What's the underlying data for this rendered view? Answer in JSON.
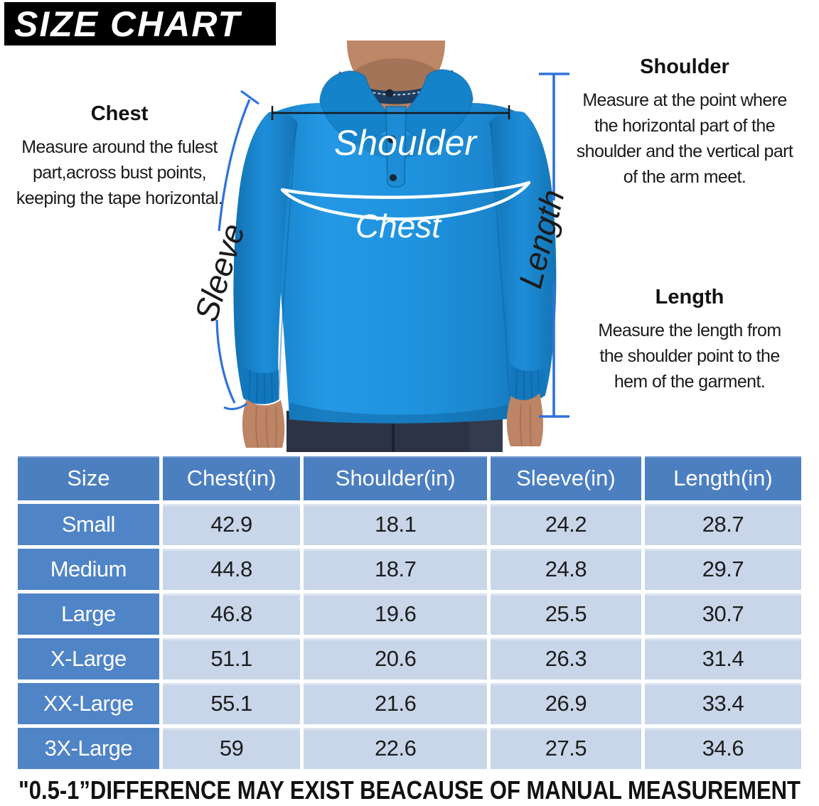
{
  "header": {
    "title": "SIZE CHART",
    "colors": {
      "title_bg": "#000000",
      "title_text": "#ffffff"
    }
  },
  "annotations": {
    "chest": {
      "heading": "Chest",
      "body": "Measure around the fulest\npart,across bust points,\nkeeping the tape horizontal."
    },
    "shoulder": {
      "heading": "Shoulder",
      "body": "Measure at the point where\nthe horizontal part of the\nshoulder and the vertical part\nof the arm meet."
    },
    "length": {
      "heading": "Length",
      "body": "Measure the length from\nthe shoulder point to the\nhem of the garment."
    }
  },
  "figure": {
    "labels": {
      "shoulder": "Shoulder",
      "chest": "Chest",
      "sleeve": "Sleeve",
      "length": "Length"
    },
    "colors": {
      "shirt_blue": "#1f8fd9",
      "measure_blue": "#2f72d9",
      "measure_black": "#16191d",
      "label_white": "#fafdff"
    }
  },
  "table": {
    "columns": [
      "Size",
      "Chest(in)",
      "Shoulder(in)",
      "Sleeve(in)",
      "Length(in)"
    ],
    "rows": [
      [
        "Small",
        "42.9",
        "18.1",
        "24.2",
        "28.7"
      ],
      [
        "Medium",
        "44.8",
        "18.7",
        "24.8",
        "29.7"
      ],
      [
        "Large",
        "46.8",
        "19.6",
        "25.5",
        "30.7"
      ],
      [
        "X-Large",
        "51.1",
        "20.6",
        "26.3",
        "31.4"
      ],
      [
        "XX-Large",
        "55.1",
        "21.6",
        "26.9",
        "33.4"
      ],
      [
        "3X-Large",
        "59",
        "22.6",
        "27.5",
        "34.6"
      ]
    ],
    "colors": {
      "header_bg": "#4c7fc0",
      "size_col_bg": "#4f84c6",
      "cell_bg": "#c9d6e9",
      "header_text": "#ffffff",
      "cell_text": "#1c1c1e"
    }
  },
  "footer": {
    "note": "\"0.5-1”DIFFERENCE MAY EXIST BEACAUSE OF MANUAL MEASUREMENT"
  },
  "chart_data": {
    "type": "table",
    "title": "SIZE CHART",
    "columns": [
      "Size",
      "Chest(in)",
      "Shoulder(in)",
      "Sleeve(in)",
      "Length(in)"
    ],
    "rows": [
      [
        "Small",
        42.9,
        18.1,
        24.2,
        28.7
      ],
      [
        "Medium",
        44.8,
        18.7,
        24.8,
        29.7
      ],
      [
        "Large",
        46.8,
        19.6,
        25.5,
        30.7
      ],
      [
        "X-Large",
        51.1,
        20.6,
        26.3,
        31.4
      ],
      [
        "XX-Large",
        55.1,
        21.6,
        26.9,
        33.4
      ],
      [
        "3X-Large",
        59,
        22.6,
        27.5,
        34.6
      ]
    ],
    "note": "\"0.5-1”DIFFERENCE MAY EXIST BEACAUSE OF MANUAL MEASUREMENT"
  }
}
